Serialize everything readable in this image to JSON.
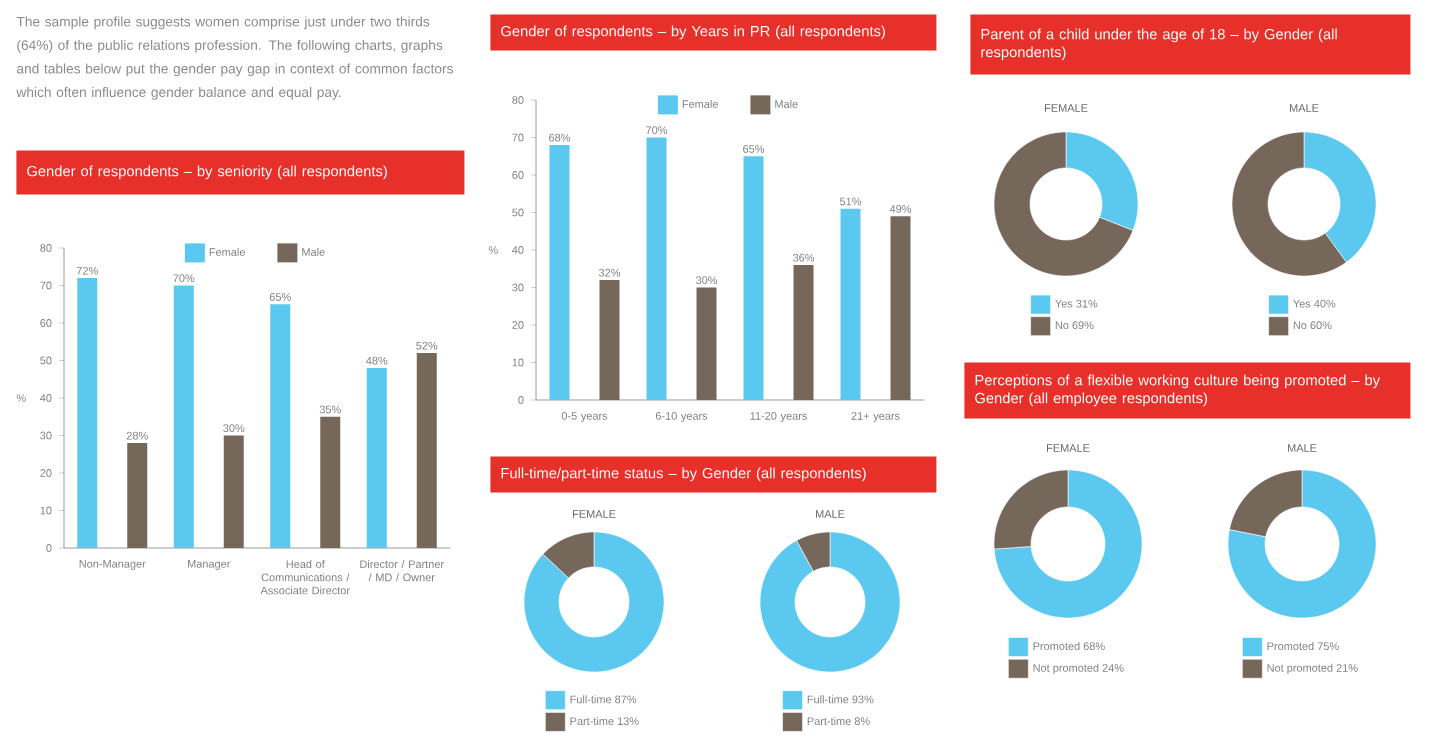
{
  "chart_data": [
    {
      "type": "other",
      "annotations": [
        "The sample profile suggests women comprise just under two thirds (64%) of the public relations profession. The following charts, graphs and tables below put the gender pay gap in context of common factors which often influence gender balance and equal pay."
      ]
    },
    {
      "type": "bar",
      "title": "Gender of respondents – by seniority (all respondents)",
      "categories": [
        "Non-Manager",
        "Manager",
        "Head of Communications / Associate Director",
        "Director / Partner / MD / Owner"
      ],
      "ylabel": "%",
      "ylim": [
        0,
        80
      ],
      "yticks": [
        0,
        10,
        20,
        30,
        40,
        50,
        60,
        70,
        80
      ],
      "legend": "top",
      "series": [
        {
          "name": "Female",
          "color": "#5bc8ef",
          "values": [
            72,
            70,
            65,
            48
          ],
          "value_labels": [
            "72%",
            "70%",
            "65%",
            "48%"
          ]
        },
        {
          "name": "Male",
          "color": "#76675b",
          "values": [
            28,
            30,
            35,
            52
          ],
          "value_labels": [
            "28%",
            "30%",
            "35%",
            "52%"
          ]
        }
      ]
    },
    {
      "type": "bar",
      "title": "Gender of respondents – by Years in PR (all respondents)",
      "categories": [
        "0-5 years",
        "6-10 years",
        "11-20 years",
        "21+ years"
      ],
      "ylabel": "%",
      "ylim": [
        0,
        80
      ],
      "yticks": [
        0,
        10,
        20,
        30,
        40,
        50,
        60,
        70,
        80
      ],
      "legend": "top",
      "series": [
        {
          "name": "Female",
          "color": "#5bc8ef",
          "values": [
            68,
            70,
            65,
            51
          ],
          "value_labels": [
            "68%",
            "70%",
            "65%",
            "51%"
          ]
        },
        {
          "name": "Male",
          "color": "#76675b",
          "values": [
            32,
            30,
            36,
            49
          ],
          "value_labels": [
            "32%",
            "30%",
            "36%",
            "49%"
          ]
        }
      ]
    },
    {
      "type": "donut",
      "title": "Full-time/part-time status – by Gender (all respondents)",
      "subtitle": "FEMALE",
      "categories": [
        "Full-time",
        "Part-time"
      ],
      "values": [
        87,
        13
      ],
      "value_labels": [
        "87%",
        "13%"
      ],
      "colors": [
        "#5bc8ef",
        "#76675b"
      ],
      "legend": "bottom"
    },
    {
      "type": "donut",
      "subtitle": "MALE",
      "categories": [
        "Full-time",
        "Part-time"
      ],
      "values": [
        93,
        8
      ],
      "value_labels": [
        "93%",
        "8%"
      ],
      "colors": [
        "#5bc8ef",
        "#76675b"
      ],
      "legend": "bottom"
    },
    {
      "type": "donut",
      "title": "Parent of a child under the age of 18 – by Gender (all respondents)",
      "subtitle": "FEMALE",
      "categories": [
        "Yes",
        "No"
      ],
      "values": [
        31,
        69
      ],
      "value_labels": [
        "31%",
        "69%"
      ],
      "colors": [
        "#5bc8ef",
        "#76675b"
      ],
      "legend": "bottom"
    },
    {
      "type": "donut",
      "subtitle": "MALE",
      "categories": [
        "Yes",
        "No"
      ],
      "values": [
        40,
        60
      ],
      "value_labels": [
        "40%",
        "60%"
      ],
      "colors": [
        "#5bc8ef",
        "#76675b"
      ],
      "legend": "bottom"
    },
    {
      "type": "donut",
      "title": "Perceptions of a flexible working culture being promoted – by Gender (all employee respondents)",
      "subtitle": "FEMALE",
      "categories": [
        "Promoted",
        "Not promoted"
      ],
      "values": [
        68,
        24
      ],
      "value_labels": [
        "68%",
        "24%"
      ],
      "colors": [
        "#5bc8ef",
        "#76675b"
      ],
      "legend": "bottom"
    },
    {
      "type": "donut",
      "subtitle": "MALE",
      "categories": [
        "Promoted",
        "Not promoted"
      ],
      "values": [
        75,
        21
      ],
      "value_labels": [
        "75%",
        "21%"
      ],
      "colors": [
        "#5bc8ef",
        "#76675b"
      ],
      "legend": "bottom"
    }
  ]
}
